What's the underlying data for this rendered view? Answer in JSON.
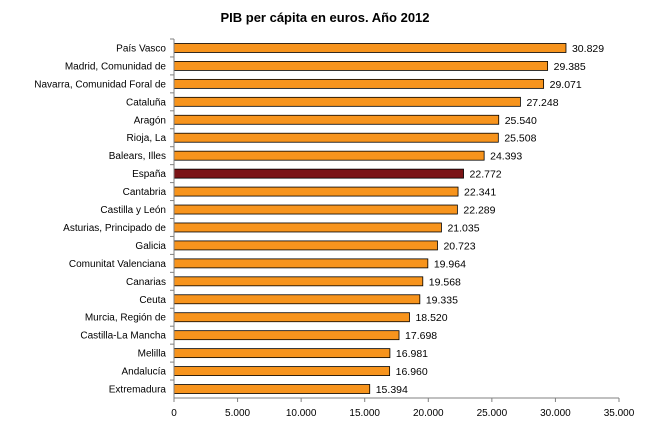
{
  "chart_data": {
    "type": "bar",
    "orientation": "horizontal",
    "title": "PIB per cápita en euros. Año 2012",
    "xlabel": "",
    "ylabel": "",
    "xlim": [
      0,
      35000
    ],
    "x_ticks": [
      0,
      5000,
      10000,
      15000,
      20000,
      25000,
      30000,
      35000
    ],
    "x_tick_labels": [
      "0",
      "5.000",
      "10.000",
      "15.000",
      "20.000",
      "25.000",
      "30.000",
      "35.000"
    ],
    "grid": false,
    "legend": "none",
    "categories": [
      "País Vasco",
      "Madrid, Comunidad de",
      "Navarra, Comunidad  Foral de",
      "Cataluña",
      "Aragón",
      "Rioja, La",
      "Balears, Illes",
      "España",
      "Cantabria",
      "Castilla y León",
      "Asturias, Principado de",
      "Galicia",
      "Comunitat Valenciana",
      "Canarias",
      "Ceuta",
      "Murcia, Región de",
      "Castilla-La Mancha",
      "Melilla",
      "Andalucía",
      "Extremadura"
    ],
    "values": [
      30829,
      29385,
      29071,
      27248,
      25540,
      25508,
      24393,
      22772,
      22341,
      22289,
      21035,
      20723,
      19964,
      19568,
      19335,
      18520,
      17698,
      16981,
      16960,
      15394
    ],
    "value_labels": [
      "30.829",
      "29.385",
      "29.071",
      "27.248",
      "25.540",
      "25.508",
      "24.393",
      "22.772",
      "22.341",
      "22.289",
      "21.035",
      "20.723",
      "19.964",
      "19.568",
      "19.335",
      "18.520",
      "17.698",
      "16.981",
      "16.960",
      "15.394"
    ],
    "highlight_category": "España",
    "colors": {
      "bar_fill": "#F7941D",
      "bar_stroke": "#000000",
      "highlight_fill": "#7B1416",
      "axis": "#808080"
    }
  }
}
